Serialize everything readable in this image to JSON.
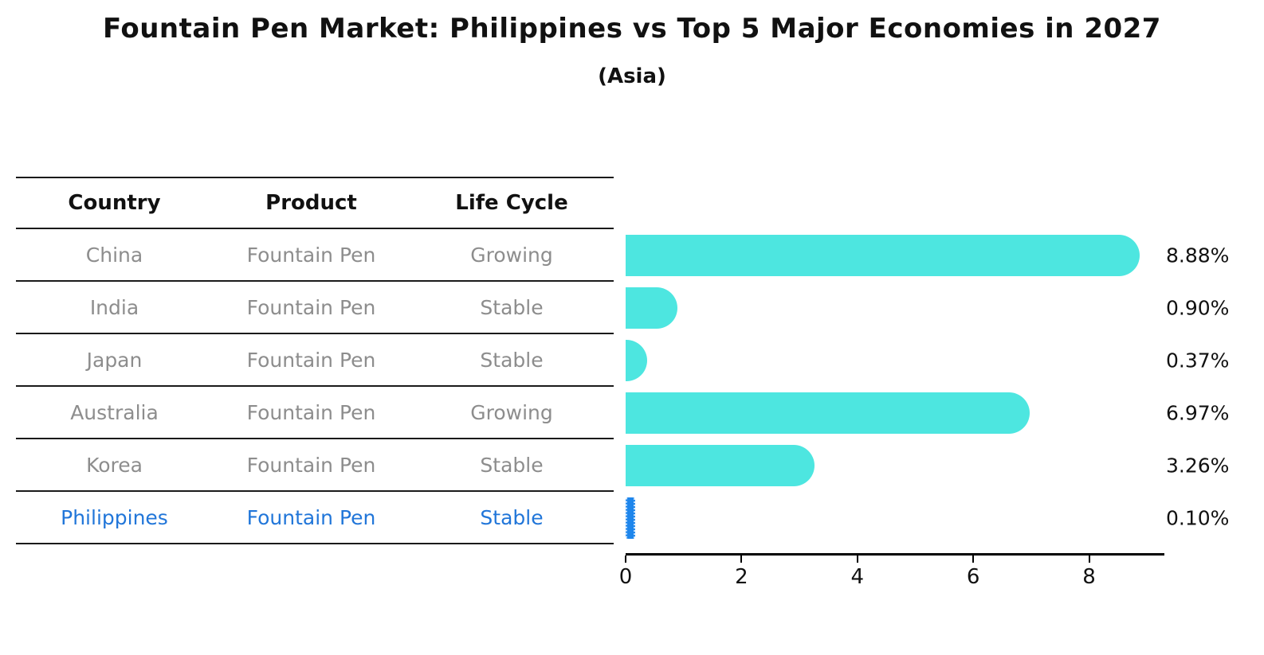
{
  "title": "Fountain Pen Market: Philippines vs Top 5 Major Economies in 2027",
  "subtitle": "(Asia)",
  "table": {
    "columns": [
      "Country",
      "Product",
      "Life Cycle"
    ]
  },
  "rows": [
    {
      "country": "China",
      "product": "Fountain Pen",
      "life_cycle": "Growing",
      "value": 8.88,
      "label": "8.88%",
      "highlight": false
    },
    {
      "country": "India",
      "product": "Fountain Pen",
      "life_cycle": "Stable",
      "value": 0.9,
      "label": "0.90%",
      "highlight": false
    },
    {
      "country": "Japan",
      "product": "Fountain Pen",
      "life_cycle": "Stable",
      "value": 0.37,
      "label": "0.37%",
      "highlight": false
    },
    {
      "country": "Australia",
      "product": "Fountain Pen",
      "life_cycle": "Growing",
      "value": 6.97,
      "label": "6.97%",
      "highlight": false
    },
    {
      "country": "Korea",
      "product": "Fountain Pen",
      "life_cycle": "Stable",
      "value": 3.26,
      "label": "3.26%",
      "highlight": false
    },
    {
      "country": "Philippines",
      "product": "Fountain Pen",
      "life_cycle": "Stable",
      "value": 0.1,
      "label": "0.10%",
      "highlight": true
    }
  ],
  "chart_data": {
    "type": "bar",
    "orientation": "horizontal",
    "title": "Fountain Pen Market: Philippines vs Top 5 Major Economies in 2027",
    "subtitle": "(Asia)",
    "categories": [
      "China",
      "India",
      "Japan",
      "Australia",
      "Korea",
      "Philippines"
    ],
    "values": [
      8.88,
      0.9,
      0.37,
      6.97,
      3.26,
      0.1
    ],
    "value_labels": [
      "8.88%",
      "0.90%",
      "0.37%",
      "6.97%",
      "3.26%",
      "0.10%"
    ],
    "xlabel": "",
    "ylabel": "",
    "xlim": [
      0,
      9.3
    ],
    "xticks": [
      "0",
      "2",
      "4",
      "6",
      "8"
    ],
    "grid": false,
    "legend": false,
    "bar_color": "#4de6e0",
    "highlight_color": "#1e86ec",
    "highlight_text_color": "#2176d9",
    "highlight_category": "Philippines"
  }
}
